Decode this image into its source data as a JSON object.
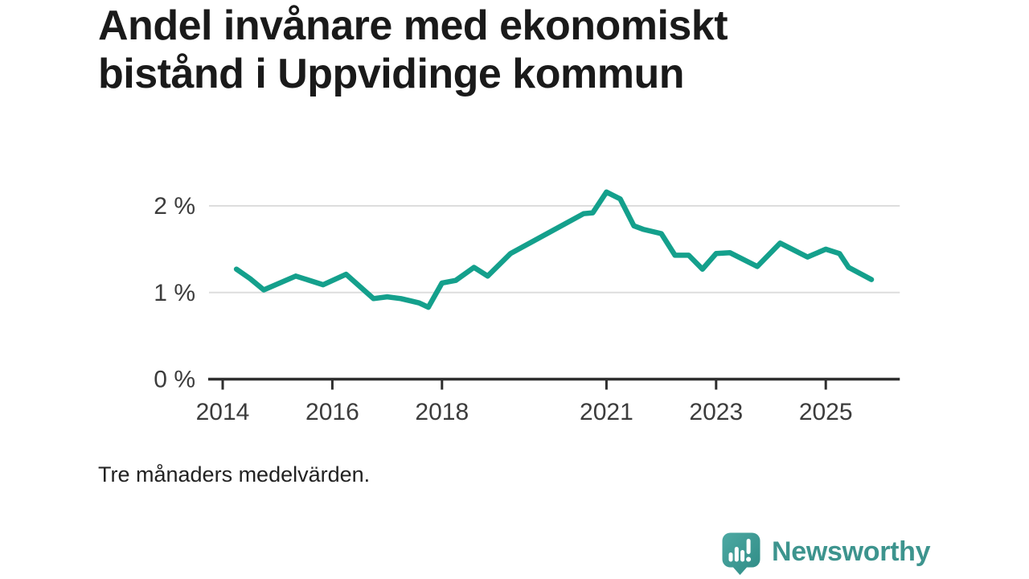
{
  "header": {
    "title_line1": "Andel invånare med ekonomiskt",
    "title_line2": "bistånd i Uppvidinge kommun"
  },
  "footnote": "Tre månaders medelvärden.",
  "logo": {
    "text": "Newsworthy",
    "icon": "newsworthy-speech-bubble-chart-icon",
    "text_color": "#3d948e",
    "icon_color_top": "#4da9a3",
    "icon_color_bottom": "#2f8b85"
  },
  "colors": {
    "line": "#14a08c",
    "grid": "#dddddd",
    "axis": "#2f2f2f",
    "tick_label": "#3c3c3c",
    "title_text": "#1a1a1a"
  },
  "chart_data": {
    "type": "line",
    "title": "Andel invånare med ekonomiskt bistånd i Uppvidinge kommun",
    "note": "Tre månaders medelvärden.",
    "unit": "%",
    "xlabel": "",
    "ylabel": "",
    "grid": "horizontal",
    "legend": "none",
    "x_range": [
      2013.75,
      2026.35
    ],
    "y_range": [
      0,
      2.3
    ],
    "x_ticks": [
      2014,
      2016,
      2018,
      2021,
      2023,
      2025
    ],
    "y_ticks": [
      {
        "value": 0,
        "label": "0 %"
      },
      {
        "value": 1,
        "label": "1 %"
      },
      {
        "value": 2,
        "label": "2 %"
      }
    ],
    "series": [
      {
        "name": "Andel invånare med ekonomiskt bistånd",
        "color": "#14a08c",
        "points": [
          [
            "2014-04",
            1.27
          ],
          [
            "2014-07",
            1.16
          ],
          [
            "2014-10",
            1.03
          ],
          [
            "2015-05",
            1.19
          ],
          [
            "2015-11",
            1.09
          ],
          [
            "2016-04",
            1.21
          ],
          [
            "2016-10",
            0.93
          ],
          [
            "2017-01",
            0.95
          ],
          [
            "2017-04",
            0.93
          ],
          [
            "2017-08",
            0.88
          ],
          [
            "2017-10",
            0.83
          ],
          [
            "2018-01",
            1.11
          ],
          [
            "2018-04",
            1.14
          ],
          [
            "2018-08",
            1.29
          ],
          [
            "2018-11",
            1.19
          ],
          [
            "2019-04",
            1.45
          ],
          [
            "2019-12",
            1.68
          ],
          [
            "2020-08",
            1.91
          ],
          [
            "2020-10",
            1.92
          ],
          [
            "2021-01",
            2.16
          ],
          [
            "2021-04",
            2.08
          ],
          [
            "2021-07",
            1.77
          ],
          [
            "2021-09",
            1.73
          ],
          [
            "2022-01",
            1.68
          ],
          [
            "2022-04",
            1.43
          ],
          [
            "2022-07",
            1.43
          ],
          [
            "2022-10",
            1.27
          ],
          [
            "2023-01",
            1.45
          ],
          [
            "2023-04",
            1.46
          ],
          [
            "2023-10",
            1.3
          ],
          [
            "2024-03",
            1.57
          ],
          [
            "2024-09",
            1.41
          ],
          [
            "2025-01",
            1.5
          ],
          [
            "2025-04",
            1.45
          ],
          [
            "2025-06",
            1.29
          ],
          [
            "2025-11",
            1.15
          ]
        ]
      }
    ]
  }
}
